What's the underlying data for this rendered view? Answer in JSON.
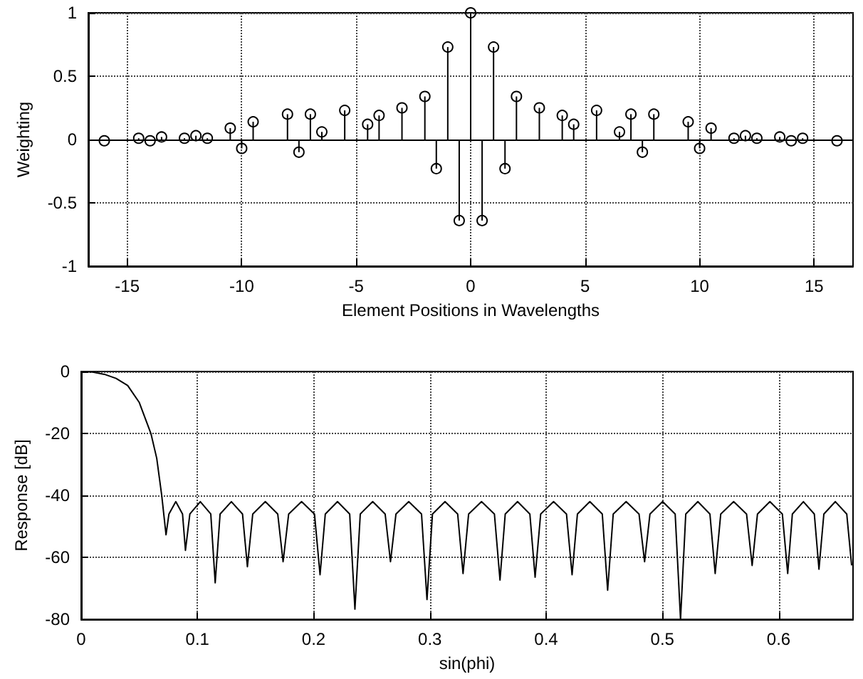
{
  "chart_data": [
    {
      "type": "lollipop",
      "xlabel": "Element Positions in Wavelengths",
      "ylabel": "Weighting",
      "x": [
        -16,
        -14.5,
        -14,
        -13.5,
        -12.5,
        -12,
        -11.5,
        -10.5,
        -10,
        -9.5,
        -8,
        -7.5,
        -7,
        -6.5,
        -5.5,
        -4.5,
        -4,
        -3,
        -2,
        -1.5,
        -1,
        -0.5,
        0,
        0.5,
        1,
        1.5,
        2,
        3,
        4,
        4.5,
        5.5,
        6.5,
        7,
        7.5,
        8,
        9.5,
        10,
        10.5,
        11.5,
        12,
        12.5,
        13.5,
        14,
        14.5,
        16
      ],
      "values": [
        -0.01,
        0.01,
        -0.01,
        0.02,
        0.01,
        0.03,
        0.01,
        0.09,
        -0.07,
        0.14,
        0.2,
        -0.1,
        0.2,
        0.06,
        0.23,
        0.12,
        0.19,
        0.25,
        0.34,
        -0.23,
        0.73,
        -0.64,
        1,
        -0.64,
        0.73,
        -0.23,
        0.34,
        0.25,
        0.19,
        0.12,
        0.23,
        0.06,
        0.2,
        -0.1,
        0.2,
        0.14,
        -0.07,
        0.09,
        0.01,
        0.03,
        0.01,
        0.02,
        -0.01,
        0.01,
        -0.01
      ],
      "color": "#000000",
      "marker": "circle",
      "xlim": [
        -16.7,
        16.7
      ],
      "xticks": [
        -15,
        -10,
        -5,
        0,
        5,
        10,
        15
      ],
      "ylim": [
        -1,
        1
      ],
      "yticks": [
        -1,
        -0.5,
        0,
        0.5,
        1
      ],
      "grid": true,
      "ref_lines": [
        {
          "axis": "y",
          "value": 0,
          "color": "#000000"
        }
      ]
    },
    {
      "type": "line",
      "xlabel": "sin(phi)",
      "ylabel": "Response [dB]",
      "color": "#000000",
      "line_style": "solid",
      "marker": "none",
      "x": [
        0,
        0.01,
        0.02,
        0.03,
        0.04,
        0.05,
        0.06,
        0.065,
        0.0693,
        0.073,
        0.0755,
        0.0814,
        0.0872,
        0.0897,
        0.0935,
        0.1025,
        0.1115,
        0.1153,
        0.1195,
        0.1292,
        0.1388,
        0.143,
        0.1476,
        0.1584,
        0.1691,
        0.1737,
        0.1785,
        0.1896,
        0.2007,
        0.2055,
        0.21,
        0.2205,
        0.231,
        0.2355,
        0.2401,
        0.2508,
        0.2615,
        0.2661,
        0.2708,
        0.2818,
        0.2928,
        0.2975,
        0.3022,
        0.313,
        0.3239,
        0.3285,
        0.3333,
        0.3444,
        0.3555,
        0.3603,
        0.3648,
        0.3754,
        0.386,
        0.3905,
        0.3953,
        0.4064,
        0.4175,
        0.4223,
        0.4269,
        0.4376,
        0.4483,
        0.4529,
        0.4577,
        0.4688,
        0.4799,
        0.4847,
        0.4893,
        0.5002,
        0.511,
        0.5156,
        0.5201,
        0.5305,
        0.5409,
        0.5454,
        0.5502,
        0.5613,
        0.5724,
        0.5772,
        0.5818,
        0.5925,
        0.6032,
        0.6078,
        0.6118,
        0.6213,
        0.6307,
        0.6347,
        0.6389,
        0.6488,
        0.6586,
        0.6628
      ],
      "values": [
        0,
        -0.2,
        -0.9,
        -2.2,
        -4.5,
        -10,
        -20,
        -28,
        -40,
        -52.7,
        -46,
        -42,
        -46,
        -57.7,
        -46,
        -42,
        -46,
        -68.2,
        -46,
        -42,
        -46,
        -63,
        -46,
        -42,
        -46,
        -61.4,
        -46,
        -42,
        -46,
        -65.6,
        -46,
        -42,
        -46,
        -76.7,
        -46,
        -42,
        -46,
        -61.4,
        -46,
        -42,
        -46,
        -73.6,
        -46,
        -42,
        -46,
        -65.2,
        -46,
        -42,
        -46,
        -67.3,
        -46,
        -42,
        -46,
        -66.4,
        -46,
        -42,
        -46,
        -65.6,
        -46,
        -42,
        -46,
        -70.6,
        -46,
        -42,
        -46,
        -61.4,
        -46,
        -42,
        -46,
        -80,
        -46,
        -42,
        -46,
        -65.2,
        -46,
        -42,
        -46,
        -62.6,
        -46,
        -42,
        -46,
        -65.2,
        -46,
        -42,
        -46,
        -63.8,
        -46,
        -42,
        -46,
        -62.6
      ],
      "xlim": [
        0,
        0.664
      ],
      "xticks": [
        0,
        0.1,
        0.2,
        0.3,
        0.4,
        0.5,
        0.6
      ],
      "ylim": [
        -80,
        0
      ],
      "yticks": [
        -80,
        -60,
        -40,
        -20,
        0
      ],
      "grid": true
    }
  ]
}
